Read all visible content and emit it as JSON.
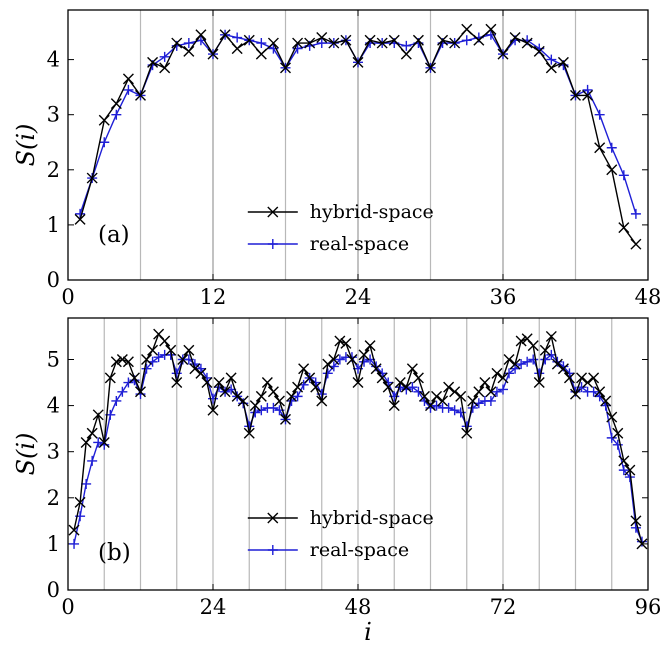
{
  "colors": {
    "hybrid": "#000000",
    "real": "#1f1fd6",
    "vline": "#b8b8b8"
  },
  "chart_data": [
    {
      "type": "line",
      "panel_label": "(a)",
      "ylabel": "S(i)",
      "xlabel": "",
      "xlim": [
        0,
        48
      ],
      "ylim": [
        0,
        4.9
      ],
      "xticks": [
        0,
        12,
        24,
        36,
        48
      ],
      "yticks": [
        0,
        1,
        2,
        3,
        4
      ],
      "vlines": [
        6,
        18,
        30,
        42
      ],
      "vlines_dark": [
        12,
        24,
        36
      ],
      "legend": {
        "position": "bottom-center"
      },
      "series": [
        {
          "name": "hybrid-space",
          "marker": "x",
          "x": [
            1,
            2,
            3,
            4,
            5,
            6,
            7,
            8,
            9,
            10,
            11,
            12,
            13,
            14,
            15,
            16,
            17,
            18,
            19,
            20,
            21,
            22,
            23,
            24,
            25,
            26,
            27,
            28,
            29,
            30,
            31,
            32,
            33,
            34,
            35,
            36,
            37,
            38,
            39,
            40,
            41,
            42,
            43,
            44,
            45,
            46,
            47
          ],
          "y": [
            1.1,
            1.85,
            2.9,
            3.2,
            3.65,
            3.35,
            3.95,
            3.85,
            4.3,
            4.15,
            4.45,
            4.1,
            4.45,
            4.2,
            4.35,
            4.1,
            4.3,
            3.85,
            4.3,
            4.3,
            4.4,
            4.3,
            4.35,
            3.95,
            4.35,
            4.3,
            4.35,
            4.1,
            4.35,
            3.85,
            4.35,
            4.3,
            4.55,
            4.35,
            4.55,
            4.1,
            4.4,
            4.3,
            4.15,
            3.85,
            3.95,
            3.35,
            3.35,
            2.4,
            2.0,
            0.95,
            0.65
          ]
        },
        {
          "name": "real-space",
          "marker": "+",
          "x": [
            1,
            2,
            3,
            4,
            5,
            6,
            7,
            8,
            9,
            10,
            11,
            12,
            13,
            14,
            15,
            16,
            17,
            18,
            19,
            20,
            21,
            22,
            23,
            24,
            25,
            26,
            27,
            28,
            29,
            30,
            31,
            32,
            33,
            34,
            35,
            36,
            37,
            38,
            39,
            40,
            41,
            42,
            43,
            44,
            45,
            46,
            47
          ],
          "y": [
            1.2,
            1.85,
            2.5,
            3.0,
            3.45,
            3.35,
            3.9,
            4.05,
            4.25,
            4.3,
            4.35,
            4.1,
            4.45,
            4.4,
            4.35,
            4.3,
            4.2,
            3.85,
            4.2,
            4.25,
            4.3,
            4.3,
            4.35,
            3.95,
            4.3,
            4.3,
            4.3,
            4.25,
            4.3,
            3.85,
            4.3,
            4.3,
            4.35,
            4.4,
            4.45,
            4.1,
            4.35,
            4.35,
            4.2,
            4.0,
            3.9,
            3.35,
            3.45,
            3.0,
            2.4,
            1.9,
            1.2
          ]
        }
      ]
    },
    {
      "type": "line",
      "panel_label": "(b)",
      "ylabel": "S(i)",
      "xlabel": "i",
      "xlim": [
        0,
        96
      ],
      "ylim": [
        0,
        5.9
      ],
      "xticks": [
        0,
        24,
        48,
        72,
        96
      ],
      "yticks": [
        0,
        1,
        2,
        3,
        4,
        5
      ],
      "vlines": [
        6,
        12,
        18,
        24,
        30,
        36,
        42,
        48,
        54,
        60,
        66,
        72,
        78,
        84,
        90
      ],
      "vlines_dark": [],
      "legend": {
        "position": "bottom-center"
      },
      "series": [
        {
          "name": "hybrid-space",
          "marker": "x",
          "x": [
            1,
            2,
            3,
            4,
            5,
            6,
            7,
            8,
            9,
            10,
            11,
            12,
            13,
            14,
            15,
            16,
            17,
            18,
            19,
            20,
            21,
            22,
            23,
            24,
            25,
            26,
            27,
            28,
            29,
            30,
            31,
            32,
            33,
            34,
            35,
            36,
            37,
            38,
            39,
            40,
            41,
            42,
            43,
            44,
            45,
            46,
            47,
            48,
            49,
            50,
            51,
            52,
            53,
            54,
            55,
            56,
            57,
            58,
            59,
            60,
            61,
            62,
            63,
            64,
            65,
            66,
            67,
            68,
            69,
            70,
            71,
            72,
            73,
            74,
            75,
            76,
            77,
            78,
            79,
            80,
            81,
            82,
            83,
            84,
            85,
            86,
            87,
            88,
            89,
            90,
            91,
            92,
            93,
            94,
            95
          ],
          "y": [
            1.3,
            1.9,
            3.2,
            3.4,
            3.8,
            3.2,
            4.6,
            4.95,
            5.0,
            4.95,
            4.6,
            4.3,
            5.0,
            5.2,
            5.55,
            5.4,
            5.2,
            4.5,
            5.0,
            5.2,
            4.8,
            4.7,
            4.5,
            3.9,
            4.5,
            4.3,
            4.6,
            4.2,
            4.1,
            3.4,
            4.0,
            4.2,
            4.5,
            4.3,
            4.1,
            3.7,
            4.2,
            4.4,
            4.8,
            4.6,
            4.4,
            4.1,
            4.9,
            5.0,
            5.4,
            5.35,
            5.0,
            4.5,
            5.1,
            5.3,
            4.8,
            4.6,
            4.4,
            4.0,
            4.5,
            4.4,
            4.8,
            4.6,
            4.2,
            4.0,
            4.2,
            4.1,
            4.4,
            4.3,
            4.2,
            3.4,
            4.1,
            4.3,
            4.5,
            4.3,
            4.7,
            4.6,
            5.0,
            4.9,
            5.4,
            5.45,
            5.3,
            4.5,
            5.2,
            5.5,
            4.9,
            4.8,
            4.6,
            4.25,
            4.6,
            4.5,
            4.6,
            4.3,
            4.1,
            3.75,
            3.4,
            2.8,
            2.6,
            1.5,
            1.0
          ]
        },
        {
          "name": "real-space",
          "marker": "+",
          "x": [
            1,
            2,
            3,
            4,
            5,
            6,
            7,
            8,
            9,
            10,
            11,
            12,
            13,
            14,
            15,
            16,
            17,
            18,
            19,
            20,
            21,
            22,
            23,
            24,
            25,
            26,
            27,
            28,
            29,
            30,
            31,
            32,
            33,
            34,
            35,
            36,
            37,
            38,
            39,
            40,
            41,
            42,
            43,
            44,
            45,
            46,
            47,
            48,
            49,
            50,
            51,
            52,
            53,
            54,
            55,
            56,
            57,
            58,
            59,
            60,
            61,
            62,
            63,
            64,
            65,
            66,
            67,
            68,
            69,
            70,
            71,
            72,
            73,
            74,
            75,
            76,
            77,
            78,
            79,
            80,
            81,
            82,
            83,
            84,
            85,
            86,
            87,
            88,
            89,
            90,
            91,
            92,
            93,
            94,
            95
          ],
          "y": [
            1.0,
            1.6,
            2.3,
            2.8,
            3.2,
            3.15,
            3.8,
            4.1,
            4.3,
            4.5,
            4.55,
            4.25,
            4.8,
            4.95,
            5.05,
            5.1,
            5.1,
            4.7,
            5.0,
            5.0,
            4.9,
            4.8,
            4.6,
            4.15,
            4.4,
            4.3,
            4.35,
            4.2,
            4.05,
            3.55,
            3.85,
            3.9,
            3.95,
            3.95,
            3.9,
            3.7,
            4.1,
            4.2,
            4.45,
            4.6,
            4.5,
            4.25,
            4.7,
            4.85,
            5.0,
            5.05,
            5.05,
            4.8,
            4.95,
            5.0,
            4.85,
            4.7,
            4.5,
            4.2,
            4.4,
            4.35,
            4.4,
            4.3,
            4.1,
            3.95,
            4.0,
            3.95,
            3.95,
            3.9,
            3.85,
            3.55,
            3.95,
            4.05,
            4.1,
            4.1,
            4.3,
            4.35,
            4.7,
            4.8,
            4.9,
            4.95,
            5.0,
            4.7,
            5.0,
            5.1,
            4.95,
            4.85,
            4.7,
            4.3,
            4.4,
            4.3,
            4.3,
            4.2,
            4.0,
            3.3,
            3.15,
            2.6,
            2.45,
            1.35,
            1.05
          ]
        }
      ]
    }
  ]
}
